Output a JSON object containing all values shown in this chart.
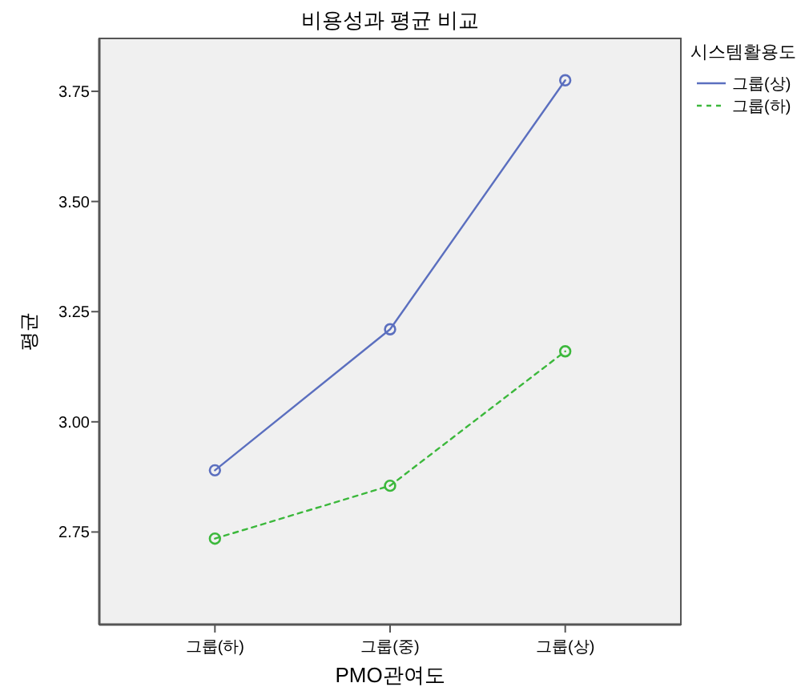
{
  "chart_data": {
    "type": "line",
    "title": "비용성과 평균 비교",
    "xlabel": "PMO관여도",
    "ylabel": "평균",
    "legend_title": "시스템활용도",
    "categories": [
      "그룹(하)",
      "그룹(중)",
      "그룹(상)"
    ],
    "series": [
      {
        "name": "그룹(상)",
        "color": "#5b6fbf",
        "values": [
          2.89,
          3.21,
          3.775
        ],
        "line_style": "solid"
      },
      {
        "name": "그룹(하)",
        "color": "#3cb83c",
        "values": [
          2.735,
          2.855,
          3.16
        ],
        "line_style": "dashed"
      }
    ],
    "ylim": [
      2.54,
      3.87
    ],
    "yticks": [
      {
        "value": 2.75,
        "label": "2.75"
      },
      {
        "value": 3,
        "label": "3.00"
      },
      {
        "value": 3.25,
        "label": "3.25"
      },
      {
        "value": 3.5,
        "label": "3.50"
      },
      {
        "value": 3.75,
        "label": "3.75"
      }
    ],
    "grid": false,
    "legend": "right",
    "marker": "circle"
  }
}
